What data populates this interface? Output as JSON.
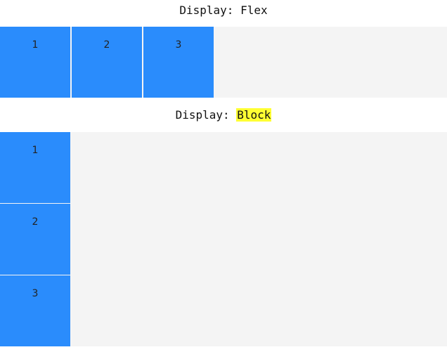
{
  "sections": [
    {
      "heading_prefix": "Display: ",
      "heading_value": "Flex",
      "highlighted": false,
      "items": [
        "1",
        "2",
        "3"
      ]
    },
    {
      "heading_prefix": "Display: ",
      "heading_value": "Block",
      "highlighted": true,
      "items": [
        "1",
        "2",
        "3"
      ]
    }
  ],
  "colors": {
    "item_background": "#2a8cfc",
    "container_background": "#f4f4f4",
    "highlight": "#ffff33"
  }
}
